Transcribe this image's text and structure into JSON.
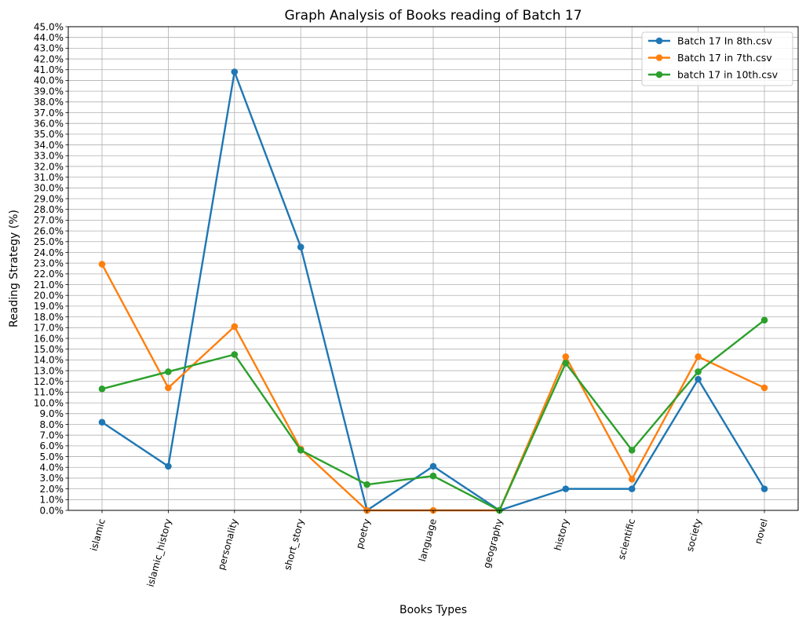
{
  "chart_data": {
    "type": "line",
    "title": "Graph Analysis of Books reading of Batch 17",
    "xlabel": "Books Types",
    "ylabel": "Reading Strategy (%)",
    "ylim": [
      0,
      45
    ],
    "y_tick_step": 1,
    "y_tick_format": "percent_1dp",
    "grid": true,
    "legend_position": "top-right",
    "categories": [
      "islamic",
      "islamic_history",
      "personality",
      "short_story",
      "poetry",
      "language",
      "geography",
      "history",
      "scientific",
      "society",
      "novel"
    ],
    "series": [
      {
        "name": "Batch 17 In 8th.csv",
        "color": "#1f77b4",
        "values": [
          8.2,
          4.1,
          40.8,
          24.5,
          0.0,
          4.1,
          0.0,
          2.0,
          2.0,
          12.2,
          2.0
        ]
      },
      {
        "name": "Batch 17 in 7th.csv",
        "color": "#ff7f0e",
        "values": [
          22.9,
          11.4,
          17.1,
          5.7,
          0.0,
          0.0,
          0.0,
          14.3,
          2.9,
          14.3,
          11.4
        ]
      },
      {
        "name": "batch 17 in 10th.csv",
        "color": "#2ca02c",
        "values": [
          11.3,
          12.9,
          14.5,
          5.6,
          2.4,
          3.2,
          0.0,
          13.7,
          5.6,
          12.9,
          17.7
        ]
      }
    ]
  }
}
